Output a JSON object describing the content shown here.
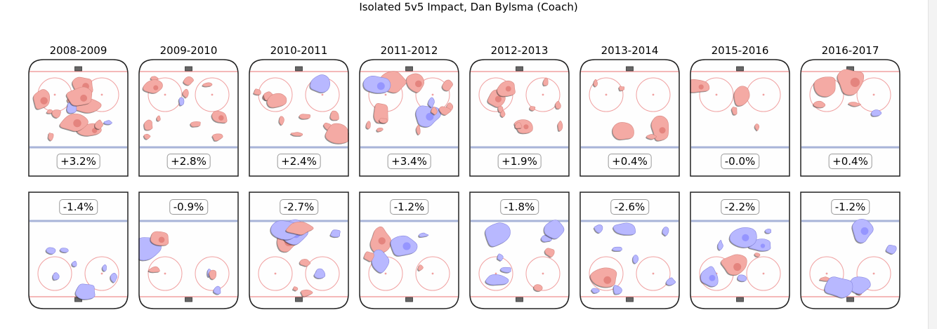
{
  "chart_data": {
    "type": "heatmap",
    "title": "Isolated 5v5 Impact, Dan Bylsma (Coach)",
    "panels": [
      {
        "season": "2008-2009",
        "offense": "+3.2%",
        "defense": "-1.4%"
      },
      {
        "season": "2009-2010",
        "offense": "+2.8%",
        "defense": "-0.9%"
      },
      {
        "season": "2010-2011",
        "offense": "+2.4%",
        "defense": "-2.7%"
      },
      {
        "season": "2011-2012",
        "offense": "+3.4%",
        "defense": "-1.2%"
      },
      {
        "season": "2012-2013",
        "offense": "+1.9%",
        "defense": "-1.8%"
      },
      {
        "season": "2013-2014",
        "offense": "+0.4%",
        "defense": "-2.6%"
      },
      {
        "season": "2015-2016",
        "offense": "-0.0%",
        "defense": "-2.2%"
      },
      {
        "season": "2016-2017",
        "offense": "+0.4%",
        "defense": "-1.2%"
      }
    ],
    "colors": {
      "positive": "#f4aaa4",
      "negative": "#b8b8ff",
      "rink_line_red": "#f0a0a0",
      "rink_line_blue": "#a8b4d8",
      "board": "#222222"
    }
  }
}
